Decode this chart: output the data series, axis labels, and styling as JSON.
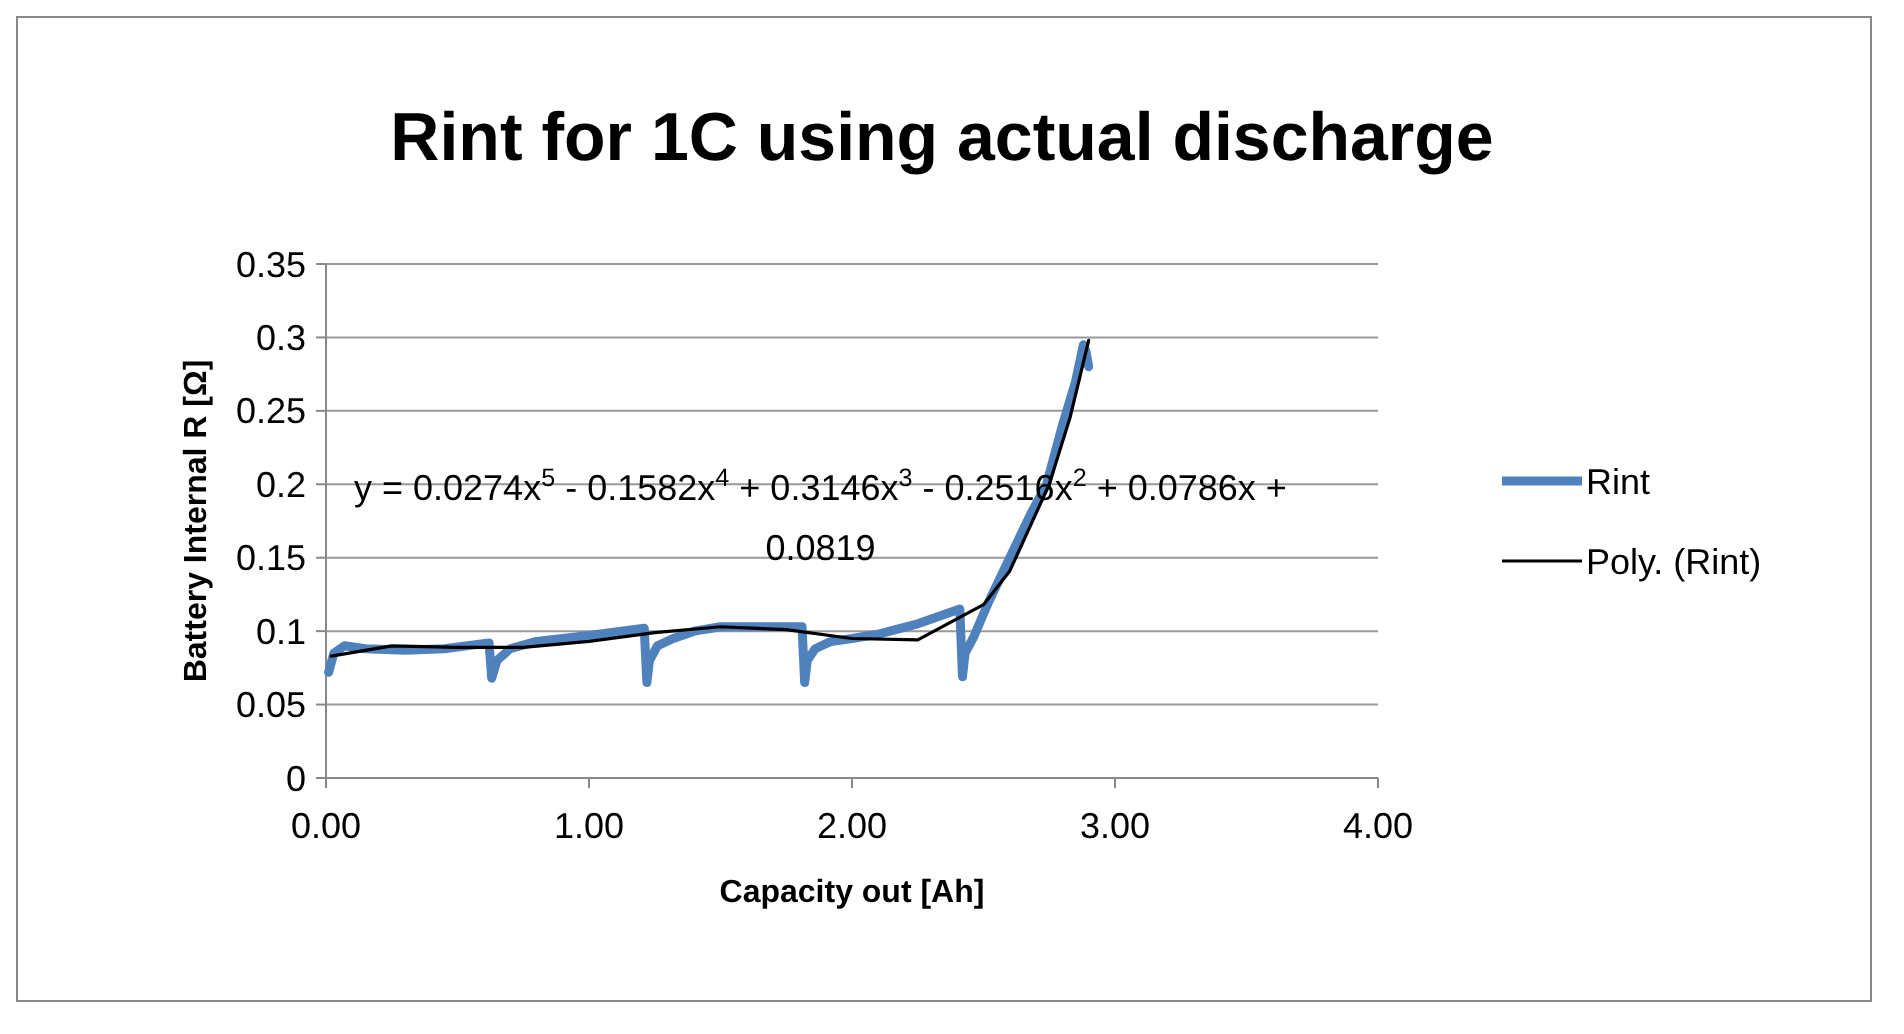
{
  "chart_data": {
    "type": "line",
    "title": "Rint for 1C using actual discharge",
    "xlabel": "Capacity out [Ah]",
    "ylabel": "Battery Internal R [Ω]",
    "xlim": [
      0,
      4
    ],
    "xticks": [
      {
        "value": 0,
        "label": "0.00"
      },
      {
        "value": 1,
        "label": "1.00"
      },
      {
        "value": 2,
        "label": "2.00"
      },
      {
        "value": 3,
        "label": "3.00"
      },
      {
        "value": 4,
        "label": "4.00"
      }
    ],
    "ylim": [
      0,
      0.35
    ],
    "yticks": [
      0,
      0.05,
      0.1,
      0.15,
      0.2,
      0.25,
      0.3,
      0.35
    ],
    "grid": "y",
    "legend": "right",
    "marker": "none",
    "annotations": [
      "y = 0.0274x$^{5}$ - 0.1582x$^{4}$ + 0.3146x$^{3}$ - 0.2516x$^{2}$ + 0.0786x + 0.0819"
    ],
    "series": [
      {
        "name": "Rint",
        "color": "#4f81bd",
        "x": [
          0.01,
          0.03,
          0.07,
          0.15,
          0.3,
          0.45,
          0.62,
          0.63,
          0.65,
          0.7,
          0.8,
          1.0,
          1.21,
          1.22,
          1.23,
          1.26,
          1.32,
          1.4,
          1.5,
          1.65,
          1.81,
          1.82,
          1.83,
          1.86,
          1.92,
          2.0,
          2.1,
          2.25,
          2.41,
          2.42,
          2.43,
          2.46,
          2.52,
          2.6,
          2.68,
          2.74,
          2.8,
          2.85,
          2.88,
          2.89,
          2.9
        ],
        "values": [
          0.072,
          0.085,
          0.09,
          0.088,
          0.087,
          0.088,
          0.092,
          0.068,
          0.08,
          0.088,
          0.093,
          0.097,
          0.102,
          0.065,
          0.08,
          0.09,
          0.095,
          0.1,
          0.103,
          0.103,
          0.103,
          0.065,
          0.08,
          0.088,
          0.093,
          0.095,
          0.098,
          0.105,
          0.115,
          0.069,
          0.085,
          0.095,
          0.12,
          0.15,
          0.18,
          0.2,
          0.24,
          0.27,
          0.295,
          0.29,
          0.28
        ]
      },
      {
        "name": "Poly. (Rint)",
        "color": "#000000",
        "x": [
          0.02,
          0.25,
          0.5,
          0.75,
          1.0,
          1.25,
          1.5,
          1.75,
          2.0,
          2.25,
          2.5,
          2.6,
          2.75,
          2.83,
          2.9
        ],
        "values": [
          0.083,
          0.09,
          0.089,
          0.089,
          0.093,
          0.099,
          0.103,
          0.101,
          0.095,
          0.094,
          0.118,
          0.141,
          0.2,
          0.246,
          0.298
        ]
      }
    ]
  }
}
